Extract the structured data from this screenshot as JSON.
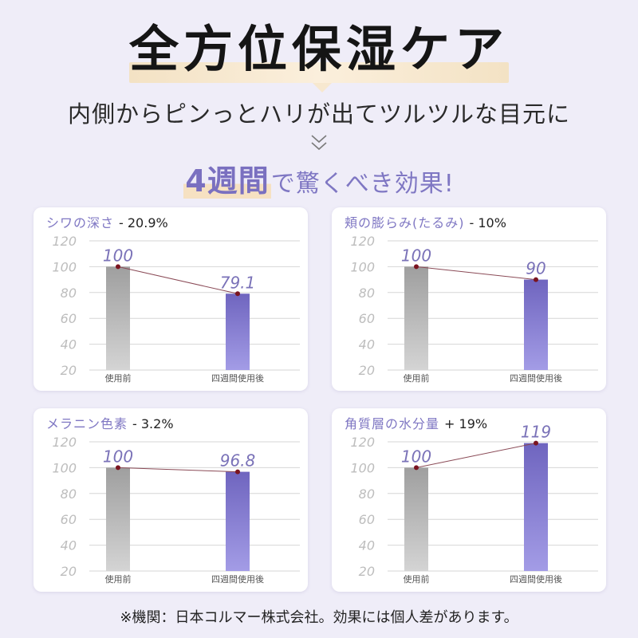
{
  "header": {
    "title": "全方位保湿ケア",
    "subtitle": "内側からピンっとハリが出てツルツルな目元に",
    "tagline_em": "4週間",
    "tagline_rest": "で驚くべき効果!"
  },
  "colors": {
    "accent": "#7f77c3",
    "before_bar_top": "#9f9f9f",
    "before_bar_bottom": "#d4d4d4",
    "after_bar_top": "#6f65bf",
    "after_bar_bottom": "#a39ce6",
    "connector": "#8a4a56",
    "dot": "#7a1420",
    "grid": "#d6d6d6",
    "tick_text": "#bdbdbd",
    "value_text": "#7a72b8"
  },
  "chart_data": [
    {
      "type": "bar",
      "title": "シワの深さ",
      "change": "- 20.9%",
      "categories": [
        "使用前",
        "四週間使用後"
      ],
      "values": [
        100,
        79.1
      ],
      "value_labels": [
        "100",
        "79.1"
      ],
      "yticks": [
        "120",
        "100",
        "80",
        "60",
        "40",
        "20"
      ],
      "ylim": [
        20,
        120
      ],
      "grid": true
    },
    {
      "type": "bar",
      "title": "頬の膨らみ(たるみ)",
      "change": "- 10%",
      "categories": [
        "使用前",
        "四週間使用後"
      ],
      "values": [
        100,
        90
      ],
      "value_labels": [
        "100",
        "90"
      ],
      "yticks": [
        "120",
        "100",
        "80",
        "60",
        "40",
        "20"
      ],
      "ylim": [
        20,
        120
      ],
      "grid": true
    },
    {
      "type": "bar",
      "title": "メラニン色素",
      "change": "- 3.2%",
      "categories": [
        "使用前",
        "四週間使用後"
      ],
      "values": [
        100,
        96.8
      ],
      "value_labels": [
        "100",
        "96.8"
      ],
      "yticks": [
        "120",
        "100",
        "80",
        "60",
        "40",
        "20"
      ],
      "ylim": [
        20,
        120
      ],
      "grid": true
    },
    {
      "type": "bar",
      "title": "角質層の水分量",
      "change": "+ 19%",
      "categories": [
        "使用前",
        "四週間使用後"
      ],
      "values": [
        100,
        119
      ],
      "value_labels": [
        "100",
        "119"
      ],
      "yticks": [
        "120",
        "100",
        "80",
        "60",
        "40",
        "20"
      ],
      "ylim": [
        20,
        120
      ],
      "grid": true
    }
  ],
  "footnote": "※機関：日本コルマー株式会社。効果には個人差があります。",
  "icons": {
    "scroll_hint": "double-chevron-down-icon"
  }
}
